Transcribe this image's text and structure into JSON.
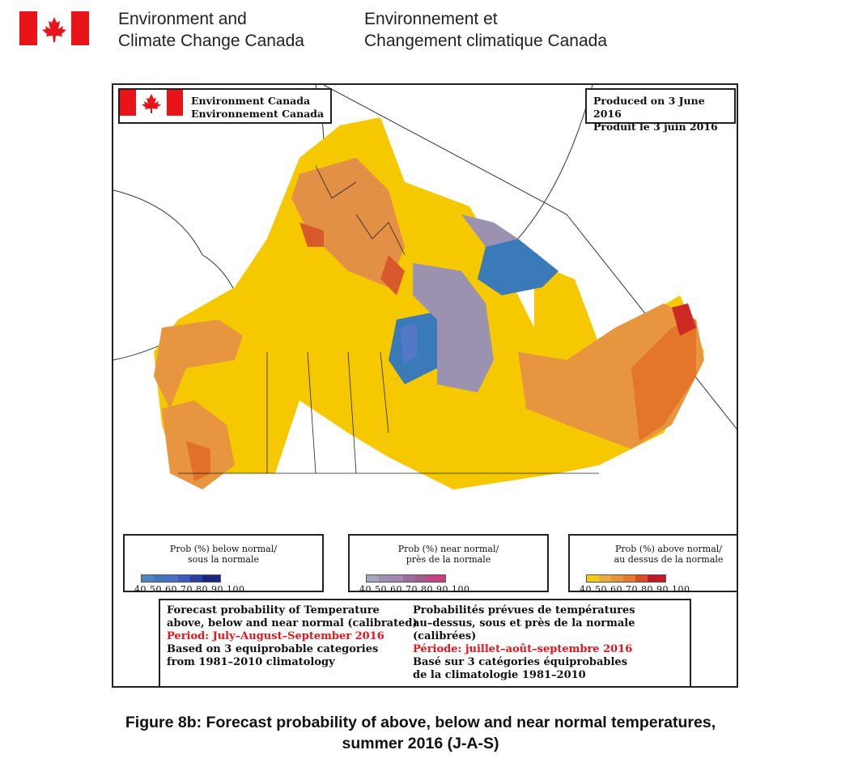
{
  "header": {
    "org_en_line1": "Environment and",
    "org_en_line2": "Climate Change Canada",
    "org_fr_line1": "Environnement et",
    "org_fr_line2": "Changement climatique Canada"
  },
  "map": {
    "logo": {
      "line1": "Environment Canada",
      "line2": "Environnement Canada"
    },
    "produced": {
      "line1": "Produced on 3 June 2016",
      "line2": "Produit le 3 juin 2016"
    },
    "legends": [
      {
        "title1": "Prob (%) below normal/",
        "title2": "sous la normale",
        "colors": [
          "#4a86c0",
          "#3f78bb",
          "#4d6fc8",
          "#3c5bc0",
          "#2a3fa0",
          "#1a2580"
        ],
        "ticks": "40 50 60 70 80 90  100"
      },
      {
        "title1": "Prob (%) near normal/",
        "title2": "près de la normale",
        "colors": [
          "#a6a3bc",
          "#9f8fb2",
          "#a287ae",
          "#9b6d9c",
          "#a35a8e",
          "#c8407f"
        ],
        "ticks": "40 50 60 70 80 90  100"
      },
      {
        "title1": "Prob (%) above normal/",
        "title2": "au dessus de la normale",
        "colors": [
          "#f5cc10",
          "#ecab3a",
          "#e8933a",
          "#e37c2c",
          "#d94c24",
          "#c6162a"
        ],
        "ticks": "40 50 60 70 80 90  100"
      }
    ],
    "info": {
      "en": [
        "Forecast probability of Temperature",
        "above, below and near normal (calibrated)",
        "Period: July–August–September 2016",
        "Based on 3 equiprobable categories",
        " from 1981–2010 climatology"
      ],
      "fr": [
        "Probabilités prévues de températures",
        "au–dessus, sous et près de la normale (calibrées)",
        "Période: juillet–août–septembre 2016",
        "Basé sur 3 catégories équiprobables",
        "de la climatologie 1981–2010"
      ]
    }
  },
  "caption": {
    "line1": "Figure 8b: Forecast probability of above, below and near normal temperatures,",
    "line2": "summer 2016 (J-A-S)"
  }
}
